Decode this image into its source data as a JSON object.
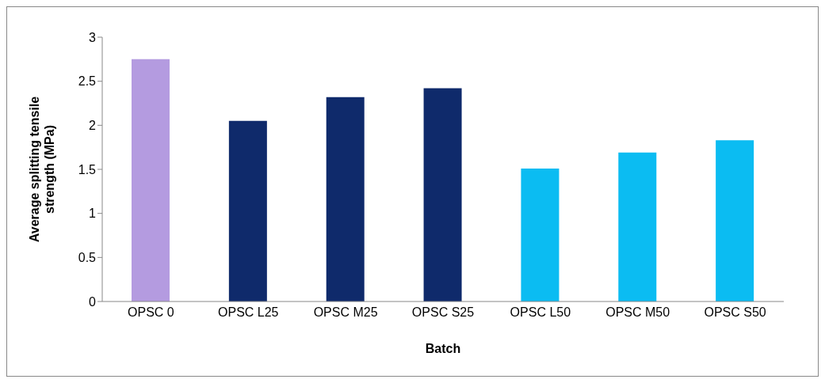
{
  "chart_data": {
    "type": "bar",
    "xlabel": "Batch",
    "ylabel": "Average splitting tensile strength (MPa)",
    "categories": [
      "OPSC 0",
      "OPSC L25",
      "OPSC M25",
      "OPSC S25",
      "OPSC L50",
      "OPSC M50",
      "OPSC S50"
    ],
    "values": [
      2.75,
      2.05,
      2.32,
      2.42,
      1.51,
      1.69,
      1.83
    ],
    "colors": [
      "#b49be0",
      "#0f2a6b",
      "#0f2a6b",
      "#0f2a6b",
      "#0bbcf2",
      "#0bbcf2",
      "#0bbcf2"
    ],
    "ylim": [
      0,
      3
    ],
    "yticks": [
      0,
      0.5,
      1,
      1.5,
      2,
      2.5,
      3
    ],
    "grid": false,
    "legend": false
  }
}
